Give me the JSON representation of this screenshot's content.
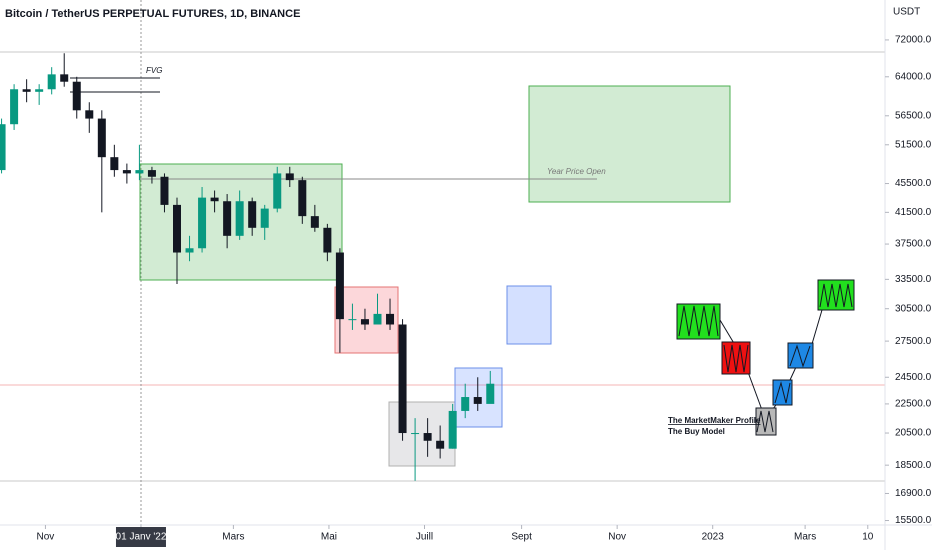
{
  "chart_data": {
    "type": "candlestick",
    "title": "Bitcoin / TetherUS PERPETUAL FUTURES, 1D, BINANCE",
    "y_axis_label": "USDT",
    "log_scale": true,
    "up_color": "#089981",
    "down_color": "#131722",
    "x": [
      -28,
      -20,
      -12,
      -4,
      4,
      12,
      20,
      28,
      36,
      44,
      52,
      60,
      68,
      76,
      84,
      92,
      100,
      108,
      116,
      124,
      132,
      140,
      148,
      156,
      164,
      172,
      180,
      188,
      196,
      204,
      212,
      220,
      228,
      236,
      244,
      252,
      260,
      268,
      276,
      284
    ],
    "open": [
      47500,
      55000,
      61500,
      61000,
      61500,
      64500,
      63000,
      57500,
      56000,
      49500,
      47500,
      47000,
      47500,
      46500,
      42500,
      36500,
      37000,
      43500,
      43000,
      38500,
      43000,
      39500,
      42000,
      47000,
      46000,
      41000,
      39500,
      36500,
      29500,
      29500,
      29000,
      30000,
      29000,
      20500,
      20500,
      20000,
      19500,
      22000,
      23000,
      22500
    ],
    "high": [
      56000,
      62500,
      63500,
      62500,
      66000,
      69000,
      64000,
      59000,
      57500,
      51500,
      48500,
      51500,
      48000,
      47000,
      43500,
      38500,
      45000,
      44500,
      44000,
      44500,
      43500,
      42500,
      48000,
      48000,
      46500,
      42500,
      40000,
      37000,
      31000,
      30500,
      32000,
      31500,
      29500,
      21500,
      21500,
      21000,
      22500,
      24000,
      24500,
      25000
    ],
    "low": [
      47000,
      54000,
      59000,
      58500,
      60500,
      62000,
      56000,
      53500,
      41500,
      46500,
      45500,
      46000,
      45500,
      41500,
      33000,
      35500,
      36500,
      41500,
      37000,
      38000,
      38500,
      38000,
      41500,
      45000,
      40000,
      39000,
      35500,
      26500,
      28500,
      28500,
      29000,
      28500,
      20000,
      17600,
      19000,
      18900,
      19500,
      21500,
      22000,
      23000
    ],
    "close": [
      55000,
      61500,
      61000,
      61500,
      64500,
      63000,
      57500,
      56000,
      49500,
      47500,
      47000,
      47500,
      46500,
      42500,
      36500,
      37000,
      43500,
      43000,
      38500,
      43000,
      39500,
      42000,
      47000,
      46000,
      41000,
      39500,
      36500,
      29500,
      29500,
      29000,
      30000,
      29000,
      20500,
      20500,
      20000,
      19500,
      22000,
      23000,
      22500,
      24000
    ],
    "xlim": [
      -29,
      536
    ],
    "xticks": [
      {
        "value": 0,
        "label": "Nov"
      },
      {
        "value": 61,
        "label": "01 Janv '22"
      },
      {
        "value": 120,
        "label": "Mars"
      },
      {
        "value": 181,
        "label": "Mai"
      },
      {
        "value": 242,
        "label": "Juill"
      },
      {
        "value": 304,
        "label": "Sept"
      },
      {
        "value": 365,
        "label": "Nov"
      },
      {
        "value": 426,
        "label": "2023"
      },
      {
        "value": 485,
        "label": "Mars"
      },
      {
        "value": 525,
        "label": "10"
      }
    ],
    "ylim": [
      15280,
      81800
    ],
    "yticks": [
      {
        "value": 72000,
        "label": "72000.0"
      },
      {
        "value": 64000,
        "label": "64000.0"
      },
      {
        "value": 56500,
        "label": "56500.0"
      },
      {
        "value": 51500,
        "label": "51500.0"
      },
      {
        "value": 45500,
        "label": "45500.0"
      },
      {
        "value": 41500,
        "label": "41500.0"
      },
      {
        "value": 37500,
        "label": "37500.0"
      },
      {
        "value": 33500,
        "label": "33500.0"
      },
      {
        "value": 30500,
        "label": "30500.0"
      },
      {
        "value": 27500,
        "label": "27500.0"
      },
      {
        "value": 24500,
        "label": "24500.0"
      },
      {
        "value": 22500,
        "label": "22500.0"
      },
      {
        "value": 20500,
        "label": "20500.0"
      },
      {
        "value": 18500,
        "label": "18500.0"
      },
      {
        "value": 16900,
        "label": "16900.0"
      },
      {
        "value": 15500,
        "label": "15500.0"
      }
    ],
    "annotations": [
      "FVG",
      "Year Price Open",
      "The MarketMaker Profile",
      "The Buy Model"
    ]
  }
}
